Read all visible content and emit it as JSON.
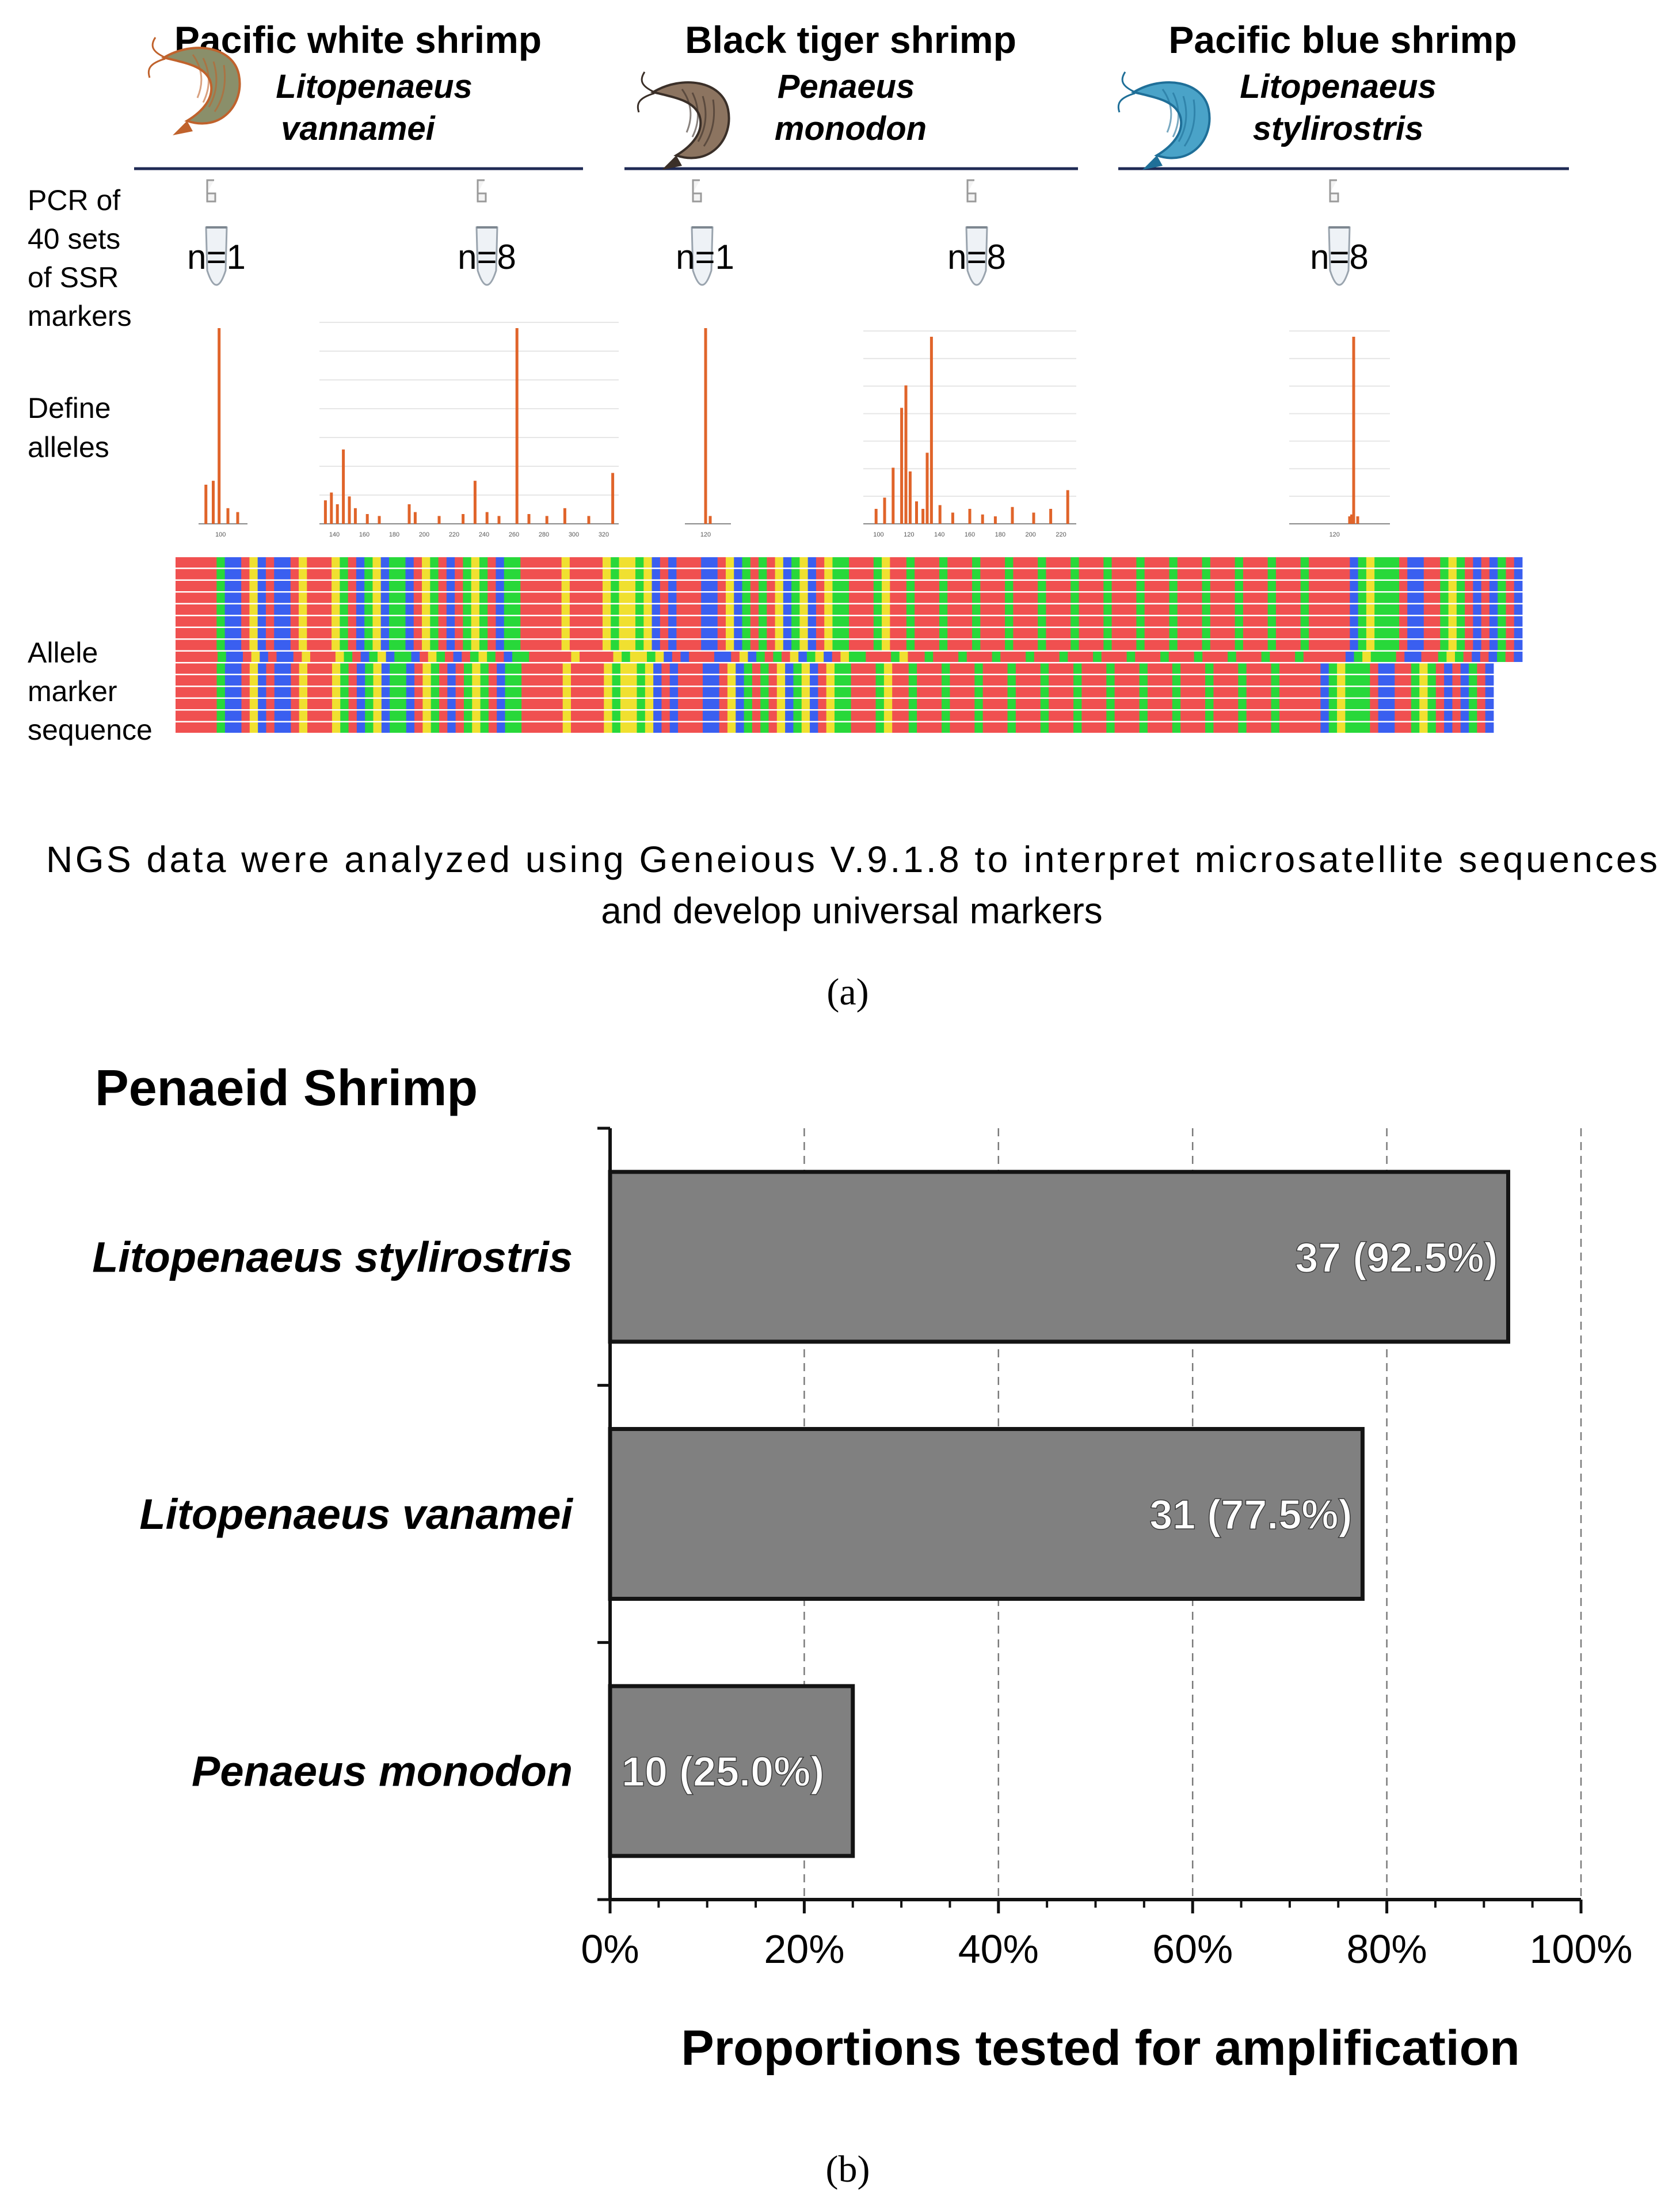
{
  "panel_a": {
    "species": [
      {
        "common": "Pacific white shrimp",
        "sci_1": "Litopenaeus",
        "sci_2": "vannamei",
        "shell": "#8a8f6a",
        "accent": "#c0622c"
      },
      {
        "common": "Black tiger shrimp",
        "sci_1": "Penaeus",
        "sci_2": "monodon",
        "shell": "#8c7460",
        "accent": "#3a2f28"
      },
      {
        "common": "Pacific blue shrimp",
        "sci_1": "Litopenaeus",
        "sci_2": "stylirostris",
        "shell": "#4aa3c8",
        "accent": "#1f6f98"
      }
    ],
    "row_labels": {
      "pcr": [
        "PCR of",
        "40 sets",
        "of SSR",
        "markers"
      ],
      "define": [
        "Define",
        "alleles"
      ],
      "allele": [
        "Allele",
        "marker",
        "sequence"
      ]
    },
    "tubes": [
      {
        "label": "n=1"
      },
      {
        "label": "n=8"
      },
      {
        "label": "n=1"
      },
      {
        "label": "n=8"
      },
      {
        "label": "n=8"
      }
    ],
    "electropherograms": [
      {
        "ticks": [
          "100"
        ],
        "peaks": [
          [
            0.15,
            0.2
          ],
          [
            0.3,
            0.22
          ],
          [
            0.42,
            1.0
          ],
          [
            0.6,
            0.08
          ],
          [
            0.8,
            0.06
          ]
        ]
      },
      {
        "ticks": [
          "140",
          "160",
          "180",
          "200",
          "220",
          "240",
          "260",
          "280",
          "300",
          "320"
        ],
        "peaks": [
          [
            0.02,
            0.12
          ],
          [
            0.04,
            0.16
          ],
          [
            0.06,
            0.1
          ],
          [
            0.08,
            0.38
          ],
          [
            0.1,
            0.14
          ],
          [
            0.12,
            0.08
          ],
          [
            0.16,
            0.05
          ],
          [
            0.2,
            0.04
          ],
          [
            0.3,
            0.1
          ],
          [
            0.32,
            0.06
          ],
          [
            0.4,
            0.04
          ],
          [
            0.48,
            0.05
          ],
          [
            0.52,
            0.22
          ],
          [
            0.56,
            0.06
          ],
          [
            0.6,
            0.04
          ],
          [
            0.66,
            1.0
          ],
          [
            0.7,
            0.05
          ],
          [
            0.76,
            0.04
          ],
          [
            0.82,
            0.08
          ],
          [
            0.9,
            0.04
          ],
          [
            0.98,
            0.26
          ]
        ]
      },
      {
        "ticks": [
          "120"
        ],
        "peaks": [
          [
            0.45,
            1.0
          ],
          [
            0.55,
            0.04
          ]
        ]
      },
      {
        "ticks": [
          "100",
          "120",
          "140",
          "160",
          "180",
          "200",
          "220"
        ],
        "peaks": [
          [
            0.06,
            0.08
          ],
          [
            0.1,
            0.14
          ],
          [
            0.14,
            0.3
          ],
          [
            0.18,
            0.62
          ],
          [
            0.2,
            0.74
          ],
          [
            0.22,
            0.28
          ],
          [
            0.25,
            0.12
          ],
          [
            0.28,
            0.08
          ],
          [
            0.3,
            0.38
          ],
          [
            0.32,
            1.0
          ],
          [
            0.36,
            0.1
          ],
          [
            0.42,
            0.06
          ],
          [
            0.5,
            0.08
          ],
          [
            0.56,
            0.05
          ],
          [
            0.62,
            0.04
          ],
          [
            0.7,
            0.09
          ],
          [
            0.8,
            0.06
          ],
          [
            0.88,
            0.08
          ],
          [
            0.96,
            0.18
          ]
        ]
      },
      {
        "ticks": [
          "120"
        ],
        "peaks": [
          [
            0.6,
            0.04
          ],
          [
            0.62,
            0.05
          ],
          [
            0.64,
            1.0
          ],
          [
            0.68,
            0.04
          ]
        ]
      }
    ],
    "alignment_colors": {
      "A": "#f05050",
      "C": "#3a5ff0",
      "G": "#f0e030",
      "T": "#28d83a"
    },
    "alignment_rows": [
      "AAAAATCCAGCACCAGAAAGTACTGCTTCAGTACATGTACTTAAAAAGAAAAGTGGTGCACAAACCAGCTATAGCTGCAGTTAAATGAATAAATAAATAAATAAATAAATAAATAAATAAATAAATAAATAAATAAATAAAAACTGTTTACCAATGTACACTAC",
      "AAAAATCCAGCACCAGAAAGTACTGCTTCAGTACATGTACTTAAAAAGAAAAGTGGTGCACAAACCAGCTATAGCTGCAGTTAAATGAATAAATAAATAAATAAATAAATAAATAAATAAATAAATAAATAAATAAATAAAAACTGTTTACCAATGTACACTAC",
      "AAAAATCCAGCACCAGAAAGTACTGCTTCAGTACATGTACTTAAAAAGAAAAGTGGTGCACAAACCAGCTATAGCTGCAGTTAAATGAATAAATAAATAAATAAATAAATAAATAAATAAATAAATAAATAAATAAATAAAAACTGTTTACCAATGTACACTAC",
      "AAAAATCCAGCACCAGAAAGTACTGCTTCAGTACATGTACTTAAAAAGAAAAGTGGTGCACAAACCAGCTATAGCTGCAGTTAAATGAATAAATAAATAAATAAATAAATAAATAAATAAATAAATAAATAAATAAATAAAAACTGTTTACCAATGTACACTAC",
      "AAAAATCCAGCACCAGAAAGTACTGCTTCAGTACATGTACTTAAAAAGAAAAGTGGTGCACAAACCAGCTATAGCTGCAGTTAAATGAATAAATAAATAAATAAATAAATAAATAAATAAATAAATAAATAAATAAATAAAAACTGTTTACCAATGTACACTAC",
      "AAAAATCCAGCACCAGAAAGTACTGCTTCAGTACATGTACTTAAAAAGAAAAGTGGTGCACAAACCAGCTATAGCTGCAGTTAAATGAATAAATAAATAAATAAATAAATAAATAAATAAATAAATAAATAAATAAATAAAAACTGTTTACCAATGTACACTAC",
      "AAAAATCCAGCACCAGAAAGTACTGCTTCAGTACATGTACTTAAAAAGAAAAGTGGTGCACAAACCAGCTATAGCTGCAGTTAAATGAATAAATAAATAAATAAATAAATAAATAAATAAATAAATAAATAAATAAATAAAAACTGTTTACCAATGTACACTAC",
      "AAAAATCCAGCACCAGAAAGTACTGCTTCAGTACATGTACTTAAAAAGAAAAGTGGTGCACAAACCAGCTATAGCTGCAGTTAAATGAATAAATAAATAAATAAATAAATAAATAAATAAATAAATAAATAAATAAATAAAAACTGTTTACCAATGTACACTAC",
      "AAAAATCCAGCACCAGAAAGTACTGCTTCAGTACATGTACTTAAAAAGAAAAGTGGTGCACAAACCAGCTATAGCTGCAGTTAAATGAATAAATAAATAAATAAATAAATAAATAAATAAATAAATAAATAAATAAAAACTGTTTACCAATGTACACTAC",
      "AAAAATCCAGCACCAGAAAGTACTGCTTCAGTACATGTACTTAAAAAGAAAAGTGGTGCACAAACCAGCTATAGCTGCAGTTAAATGAATAAATAAATAAATAAATAAATAAATAAATAAATAAATAAATAAATAAAAACTGTTTACCAATGTACACTAC",
      "AAAAATCCAGCACCAGAAAGTACTGCTTCAGTACATGTACTTAAAAAGAAAAGTGGTGCACAAACCAGCTATAGCTGCAGTTAAATGAATAAATAAATAAATAAATAAATAAATAAATAAATAAATAAATAAATAAAAACTGTTTACCAATGTACACTAC",
      "AAAAATCCAGCACCAGAAAGTACTGCTTCAGTACATGTACTTAAAAAGAAAAGTGGTGCACAAACCAGCTATAGCTGCAGTTAAATGAATAAATAAATAAATAAATAAATAAATAAATAAATAAATAAATAAATAAAAACTGTTTACCAATGTACACTAC",
      "AAAAATCCAGCACCAGAAAGTACTGCTTCAGTACATGTACTTAAAAAGAAAAGTGGTGCACAAACCAGCTATAGCTGCAGTTAAATGAATAAATAAATAAATAAATAAATAAATAAATAAATAAATAAATAAATAAAAACTGTTTACCAATGTACACTAC",
      "AAAAATCCAGCACCAGAAAGTACTGCTTCAGTACATGTACTTAAAAAGAAAAGTGGTGCACAAACCAGCTATAGCTGCAGTTAAATGAATAAATAAATAAATAAATAAATAAATAAATAAATAAATAAATAAATAAAAACTGTTTACCAATGTACACTAC",
      "AAAAATCCAGCACCAGAAAGTACTGCTTCAGTACATGTACTTAAAAAGAAAAGTGGTGCACAAACCAGCTATAGCTGCAGTTAAATGAATAAATAAATAAATAAATAAATAAATAAATAAATAAATAAATAAATAAAAACTGTTTACCAATGTACACTAC"
    ],
    "caption_line1": "NGS data were analyzed using Geneious V.9.1.8 to interpret microsatellite sequences",
    "caption_line2": "and develop universal markers",
    "panel_label": "(a)"
  },
  "chart_data": {
    "type": "bar",
    "orientation": "horizontal",
    "title": "Penaeid Shrimp",
    "categories": [
      "Litopenaeus stylirostris",
      "Litopenaeus vanamei",
      "Penaeus monodon"
    ],
    "values": [
      92.5,
      77.5,
      25.0
    ],
    "counts": [
      37,
      31,
      10
    ],
    "data_labels": [
      "37 (92.5%)",
      "31 (77.5%)",
      "10 (25.0%)"
    ],
    "xlabel": "Proportions tested for amplification",
    "ylabel": "",
    "xlim": [
      0,
      100
    ],
    "xticks": [
      0,
      20,
      40,
      60,
      80,
      100
    ],
    "xtick_labels": [
      "0%",
      "20%",
      "40%",
      "60%",
      "80%",
      "100%"
    ],
    "grid": "vertical dashed",
    "bar_color": "#808080",
    "panel_label": "(b)"
  }
}
